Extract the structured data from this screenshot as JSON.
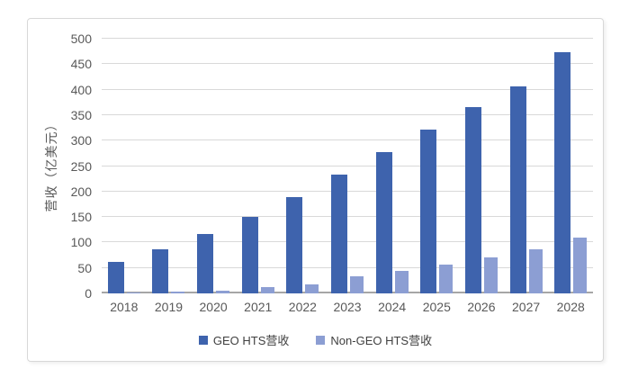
{
  "chart_data": {
    "type": "bar",
    "title": "",
    "xlabel": "",
    "ylabel": "营收（亿美元）",
    "ylim": [
      0,
      500
    ],
    "yticks": [
      0,
      50,
      100,
      150,
      200,
      250,
      300,
      350,
      400,
      450,
      500
    ],
    "grid": true,
    "legend_position": "bottom",
    "categories": [
      "2018",
      "2019",
      "2020",
      "2021",
      "2022",
      "2023",
      "2024",
      "2025",
      "2026",
      "2027",
      "2028"
    ],
    "series": [
      {
        "key": "geo",
        "name": "GEO HTS营收",
        "color": "#3E63AD",
        "values": [
          62,
          86,
          116,
          151,
          189,
          233,
          278,
          322,
          366,
          406,
          474
        ]
      },
      {
        "key": "non-geo",
        "name": "Non-GEO HTS营收",
        "color": "#8C9ED3",
        "values": [
          1,
          3,
          6,
          12,
          18,
          33,
          45,
          57,
          70,
          87,
          110
        ]
      }
    ]
  },
  "colors": {
    "gridline": "#d9d9d9",
    "axis_line": "#a6a6a6",
    "tick_text": "#595959",
    "card_border": "#d8d8d8",
    "background": "#ffffff"
  }
}
